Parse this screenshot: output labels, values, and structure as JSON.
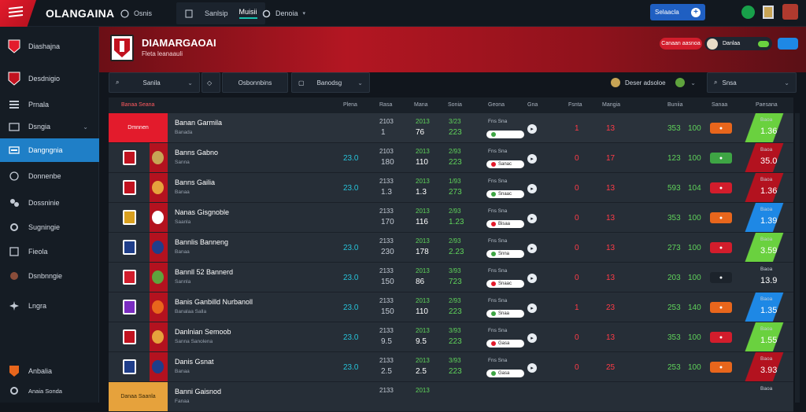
{
  "brand": {
    "name": "OLANGAINA"
  },
  "topnav": {
    "item1": "Osnis",
    "tab_a": "Sanlsip",
    "tab_b": "Muisii",
    "item3": "Denoia",
    "cta": "Selaacla"
  },
  "sidebar": {
    "title": "Diashajna",
    "items": [
      {
        "label": "Desdnigio",
        "icon": "shield-icon"
      },
      {
        "label": "Prnala",
        "icon": "list-icon"
      },
      {
        "label": "Dsngia",
        "icon": "folder-icon"
      },
      {
        "label": "Dangngnia",
        "icon": "stack-icon"
      },
      {
        "label": "Donnenbe",
        "icon": "chart-icon"
      },
      {
        "label": "Dossninie",
        "icon": "users-icon"
      },
      {
        "label": "Sugningie",
        "icon": "settings-icon"
      },
      {
        "label": "Fieola",
        "icon": "book-icon"
      },
      {
        "label": "Dsnbnngie",
        "icon": "globe-icon"
      },
      {
        "label": "Lngra",
        "icon": "gear-icon"
      }
    ],
    "footer1": "Anbalia",
    "footer2": "Anaia Sonda"
  },
  "hero": {
    "title": "DIAMARGAOAI",
    "subtitle": "Fleta leanaauli",
    "pill_red": "Canaan aasnoa",
    "user_pill": "Danlaa"
  },
  "filters": {
    "f1": "Sanila",
    "f2": "Osbonnbins",
    "f3": "Banodsg",
    "f4": "Deser adsoloe",
    "f5": "Snsa"
  },
  "columns": {
    "c0": "Banaa Seana",
    "c1": "Plena",
    "c2": "Rasa",
    "c3": "Mana",
    "c4": "Sonia",
    "c5": "Geona",
    "c6": "Gna",
    "c7": "Fsnta",
    "c8": "Mangia",
    "c9": "Buniia",
    "c10": "Sanaa",
    "c11": "Paesana"
  },
  "rows": [
    {
      "first": "Dmnnen",
      "name": "Banan Garmila",
      "sub": "Banada",
      "a": "",
      "b1": "2103",
      "b2": "1",
      "c1": "2013",
      "c2": "76",
      "d1": "3/23",
      "d2": "223",
      "oddlbl": "Fns Sna",
      "odds": "",
      "e": "1",
      "f": "13",
      "g1": "353",
      "g2": "100",
      "btn": "",
      "btncolor": "#e8661c",
      "price_lbl": "Baoa",
      "price": "1.36",
      "slant": "#6ad13f"
    },
    {
      "first": "",
      "name": "Banns Gabno",
      "sub": "Sanna",
      "a": "23.0",
      "b1": "2103",
      "b2": "180",
      "c1": "2013",
      "c2": "110",
      "d1": "2/93",
      "d2": "223",
      "oddlbl": "Fns Sna",
      "odds": "Sanac",
      "e": "0",
      "f": "17",
      "g1": "123",
      "g2": "100",
      "btn": "",
      "btncolor": "#3ea544",
      "price_lbl": "Baoa",
      "price": "35.0",
      "slant": "#b3121f"
    },
    {
      "first": "",
      "name": "Banns Gailia",
      "sub": "Banaa",
      "a": "23.0",
      "b1": "2133",
      "b2": "1.3",
      "c1": "2013",
      "c2": "1.3",
      "d1": "1/93",
      "d2": "273",
      "oddlbl": "Fns Sna",
      "odds": "Snaac",
      "e": "0",
      "f": "13",
      "g1": "593",
      "g2": "104",
      "btn": "",
      "btncolor": "#d21d2c",
      "price_lbl": "Baoa",
      "price": "1.36",
      "slant": "#b3121f"
    },
    {
      "first": "",
      "name": "Nanas Gisgnoble",
      "sub": "Saanla",
      "a": "",
      "b1": "2133",
      "b2": "170",
      "c1": "2013",
      "c2": "116",
      "d1": "2/93",
      "d2": "1.23",
      "oddlbl": "Fns Sna",
      "odds": "Bisaa",
      "e": "0",
      "f": "13",
      "g1": "353",
      "g2": "100",
      "btn": "",
      "btncolor": "#e8661c",
      "price_lbl": "Baoa",
      "price": "1.39",
      "slant": "#1e88e5"
    },
    {
      "first": "",
      "name": "Bannlis Banneng",
      "sub": "Banaa",
      "a": "23.0",
      "b1": "2133",
      "b2": "230",
      "c1": "2013",
      "c2": "178",
      "d1": "2/93",
      "d2": "2.23",
      "oddlbl": "Fns Sna",
      "odds": "Snna",
      "e": "0",
      "f": "13",
      "g1": "273",
      "g2": "100",
      "btn": "",
      "btncolor": "#d21d2c",
      "price_lbl": "Baoa",
      "price": "3.59",
      "slant": "#6ad13f"
    },
    {
      "first": "",
      "name": "Bannll 52 Bannerd",
      "sub": "Sannla",
      "a": "23.0",
      "b1": "2133",
      "b2": "150",
      "c1": "2013",
      "c2": "86",
      "d1": "3/93",
      "d2": "723",
      "oddlbl": "Fns Sna",
      "odds": "Snaac",
      "e": "0",
      "f": "13",
      "g1": "203",
      "g2": "100",
      "btn": "",
      "btncolor": "#1c232b",
      "price_lbl": "Baoa",
      "price": "13.9",
      "slant": ""
    },
    {
      "first": "",
      "name": "Banis Ganbilld Nurbanoll",
      "sub": "Banalaa Salla",
      "a": "23.0",
      "b1": "2133",
      "b2": "150",
      "c1": "2013",
      "c2": "110",
      "d1": "2/93",
      "d2": "223",
      "oddlbl": "Fns Sna",
      "odds": "Snaa",
      "e": "1",
      "f": "23",
      "g1": "253",
      "g2": "140",
      "btn": "",
      "btncolor": "#e8661c",
      "price_lbl": "Baoa",
      "price": "1.35",
      "slant": "#1e88e5"
    },
    {
      "first": "",
      "name": "Danlnian Semoob",
      "sub": "Sanna Sanolena",
      "a": "23.0",
      "b1": "2133",
      "b2": "9.5",
      "c1": "2013",
      "c2": "9.5",
      "d1": "3/93",
      "d2": "223",
      "oddlbl": "Fns Sna",
      "odds": "Gasa",
      "e": "0",
      "f": "13",
      "g1": "353",
      "g2": "100",
      "btn": "",
      "btncolor": "#d21d2c",
      "price_lbl": "Baoa",
      "price": "1.55",
      "slant": "#6ad13f"
    },
    {
      "first": "",
      "name": "Danis Gsnat",
      "sub": "Banaa",
      "a": "23.0",
      "b1": "2133",
      "b2": "2.5",
      "c1": "2013",
      "c2": "2.5",
      "d1": "3/93",
      "d2": "223",
      "oddlbl": "Fns Sna",
      "odds": "Gasa",
      "e": "0",
      "f": "25",
      "g1": "253",
      "g2": "100",
      "btn": "",
      "btncolor": "#e8661c",
      "price_lbl": "Baoa",
      "price": "3.93",
      "slant": "#b3121f"
    },
    {
      "first": "Danaa Saanla",
      "name": "Banni Gaisnod",
      "sub": "Fanaa",
      "a": "",
      "b1": "2133",
      "b2": "",
      "c1": "2013",
      "c2": "",
      "d1": "",
      "d2": "",
      "oddlbl": "",
      "odds": "",
      "e": "",
      "f": "",
      "g1": "",
      "g2": "",
      "btn": "",
      "btncolor": "#e8661c",
      "price_lbl": "Baoa",
      "price": "",
      "slant": ""
    }
  ],
  "colors": {
    "accent_red": "#e31b2c",
    "accent_blue": "#1f7fc7",
    "cyan": "#27c3d9",
    "green": "#5fd35a"
  }
}
